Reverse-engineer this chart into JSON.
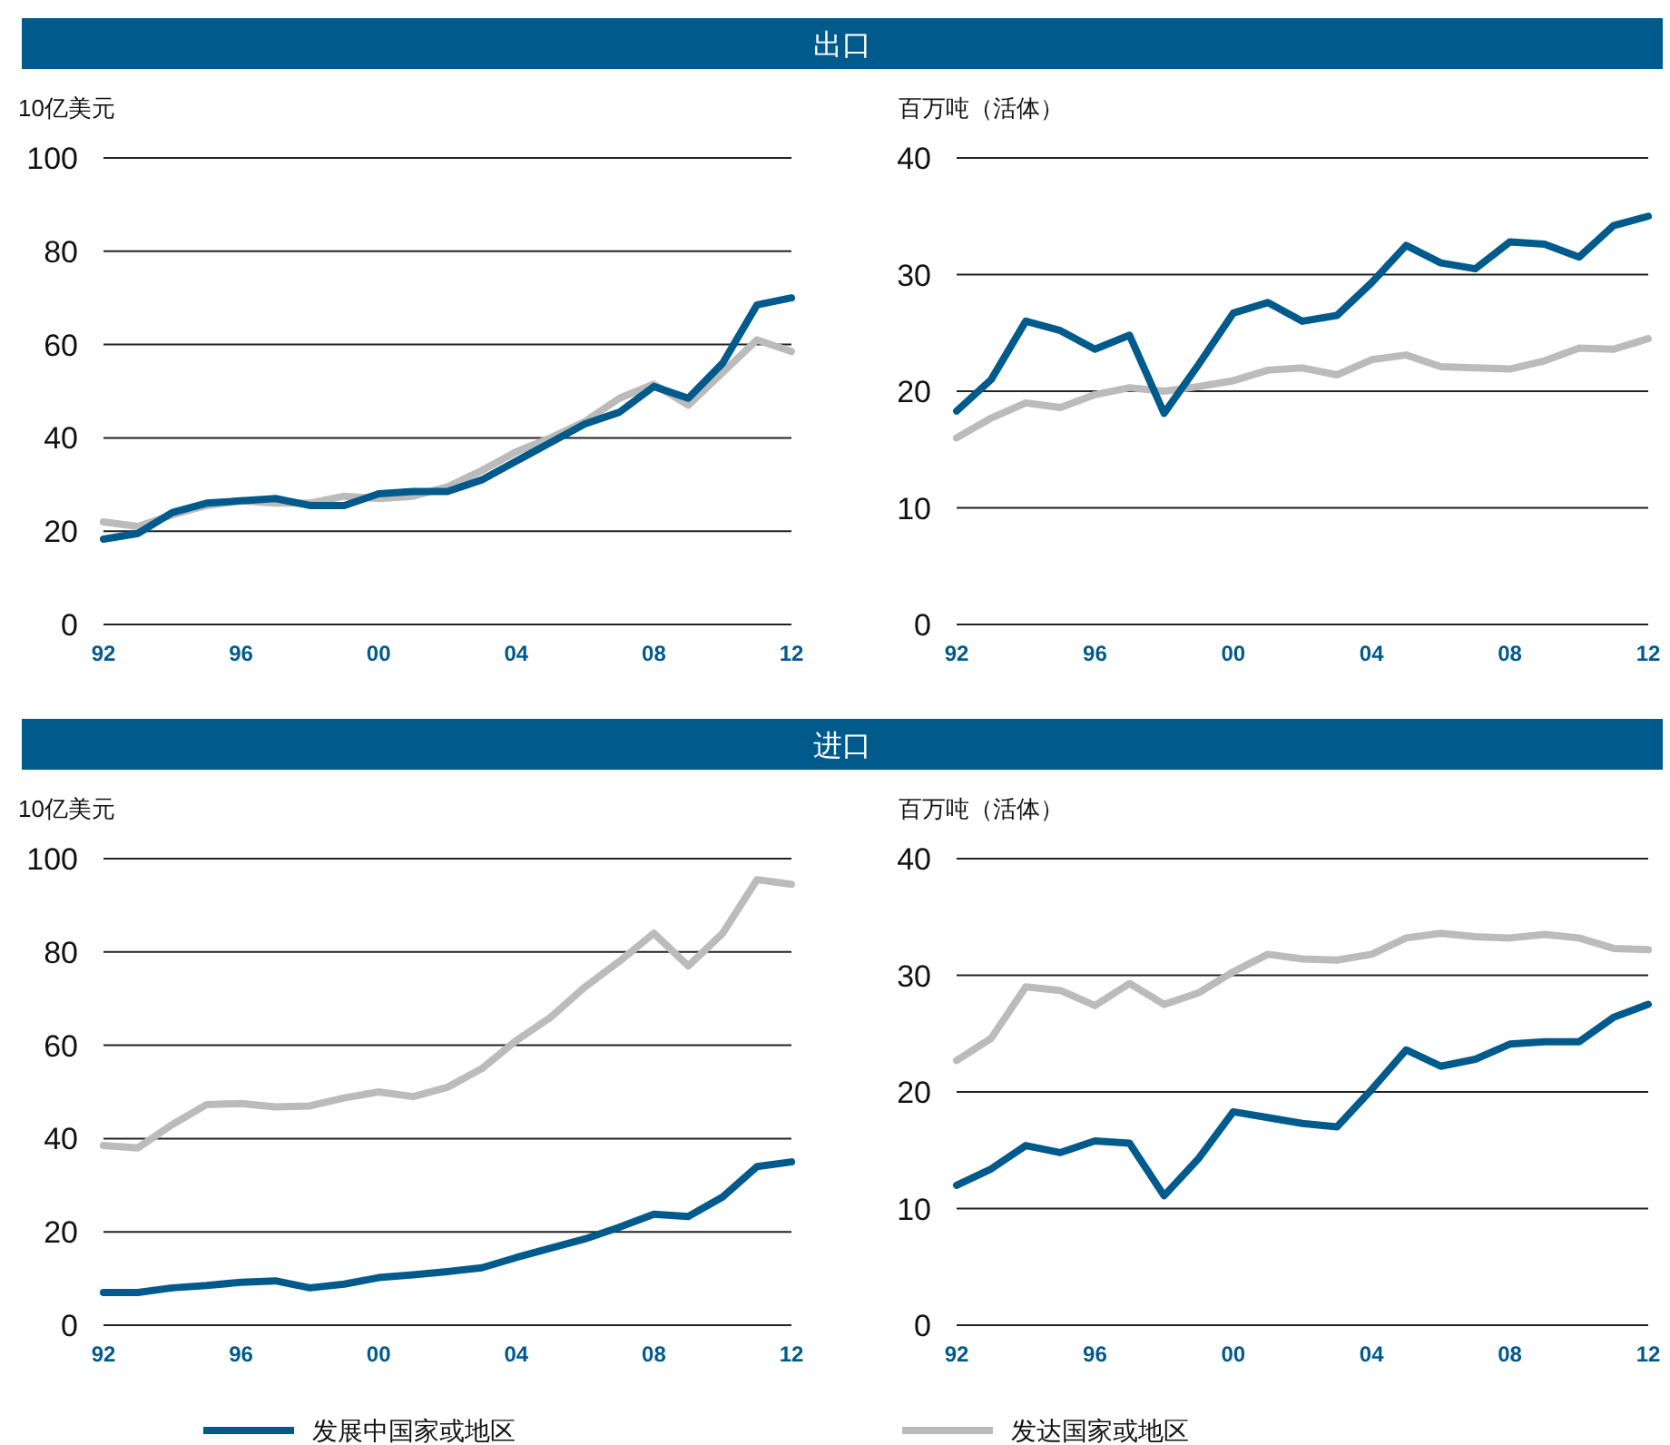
{
  "chart_data": [
    {
      "type": "line",
      "title": "出口",
      "ylabel": "10亿美元",
      "x": [
        1992,
        1993,
        1994,
        1995,
        1996,
        1997,
        1998,
        1999,
        2000,
        2001,
        2002,
        2003,
        2004,
        2005,
        2006,
        2007,
        2008,
        2009,
        2010,
        2011,
        2012
      ],
      "xlim": [
        1992,
        2012
      ],
      "xticks": [
        {
          "value": 1992,
          "label": "92"
        },
        {
          "value": 1996,
          "label": "96"
        },
        {
          "value": 2000,
          "label": "00"
        },
        {
          "value": 2004,
          "label": "04"
        },
        {
          "value": 2008,
          "label": "08"
        },
        {
          "value": 2012,
          "label": "12"
        }
      ],
      "ylim": [
        0,
        100
      ],
      "yticks": [
        0,
        20,
        40,
        60,
        80,
        100
      ],
      "grid": "y",
      "series": [
        {
          "color": "#bbbbbb",
          "values": [
            22,
            21,
            23.5,
            25.5,
            26.5,
            26,
            26,
            27.5,
            27,
            27.5,
            29.5,
            33,
            37,
            40,
            43.5,
            48.5,
            51.5,
            47,
            54,
            61,
            58.5
          ]
        },
        {
          "color": "#005a8c",
          "values": [
            18.3,
            19.5,
            24,
            26,
            26.5,
            27,
            25.5,
            25.5,
            28,
            28.5,
            28.5,
            31,
            35,
            39,
            43,
            45.5,
            51,
            48.5,
            56,
            68.5,
            70
          ]
        }
      ]
    },
    {
      "type": "line",
      "ylabel": "百万吨（活体）",
      "x": [
        1992,
        1993,
        1994,
        1995,
        1996,
        1997,
        1998,
        1999,
        2000,
        2001,
        2002,
        2003,
        2004,
        2005,
        2006,
        2007,
        2008,
        2009,
        2010,
        2011,
        2012
      ],
      "xlim": [
        1992,
        2012
      ],
      "xticks": [
        {
          "value": 1992,
          "label": "92"
        },
        {
          "value": 1996,
          "label": "96"
        },
        {
          "value": 2000,
          "label": "00"
        },
        {
          "value": 2004,
          "label": "04"
        },
        {
          "value": 2008,
          "label": "08"
        },
        {
          "value": 2012,
          "label": "12"
        }
      ],
      "ylim": [
        0,
        40
      ],
      "yticks": [
        0,
        10,
        20,
        30,
        40
      ],
      "grid": "y",
      "series": [
        {
          "color": "#bbbbbb",
          "values": [
            16,
            17.7,
            19,
            18.6,
            19.7,
            20.3,
            20,
            20.4,
            20.9,
            21.8,
            22,
            21.4,
            22.7,
            23.1,
            22.1,
            22,
            21.9,
            22.6,
            23.7,
            23.6,
            24.5
          ]
        },
        {
          "color": "#005a8c",
          "values": [
            18.3,
            21,
            26,
            25.2,
            23.6,
            24.8,
            18.1,
            22.3,
            26.7,
            27.6,
            26,
            26.5,
            29.3,
            32.5,
            31,
            30.5,
            32.8,
            32.6,
            31.5,
            34.2,
            35
          ]
        }
      ]
    },
    {
      "type": "line",
      "title": "进口",
      "ylabel": "10亿美元",
      "legend": "bottom",
      "x": [
        1992,
        1993,
        1994,
        1995,
        1996,
        1997,
        1998,
        1999,
        2000,
        2001,
        2002,
        2003,
        2004,
        2005,
        2006,
        2007,
        2008,
        2009,
        2010,
        2011,
        2012
      ],
      "xlim": [
        1992,
        2012
      ],
      "xticks": [
        {
          "value": 1992,
          "label": "92"
        },
        {
          "value": 1996,
          "label": "96"
        },
        {
          "value": 2000,
          "label": "00"
        },
        {
          "value": 2004,
          "label": "04"
        },
        {
          "value": 2008,
          "label": "08"
        },
        {
          "value": 2012,
          "label": "12"
        }
      ],
      "ylim": [
        0,
        100
      ],
      "yticks": [
        0,
        20,
        40,
        60,
        80,
        100
      ],
      "grid": "y",
      "series": [
        {
          "name": "发达国家或地区",
          "color": "#bbbbbb",
          "values": [
            38.5,
            38,
            43,
            47.3,
            47.5,
            46.8,
            47,
            48.7,
            50,
            49,
            51,
            55,
            61,
            66,
            72.5,
            78,
            84,
            77,
            84,
            95.5,
            94.5
          ]
        },
        {
          "name": "发展中国家或地区",
          "color": "#005a8c",
          "values": [
            7,
            7,
            8,
            8.5,
            9.2,
            9.5,
            8,
            8.8,
            10.2,
            10.8,
            11.5,
            12.3,
            14.5,
            16.5,
            18.5,
            21,
            23.8,
            23.3,
            27.5,
            34,
            35
          ]
        }
      ]
    },
    {
      "type": "line",
      "ylabel": "百万吨（活体）",
      "x": [
        1992,
        1993,
        1994,
        1995,
        1996,
        1997,
        1998,
        1999,
        2000,
        2001,
        2002,
        2003,
        2004,
        2005,
        2006,
        2007,
        2008,
        2009,
        2010,
        2011,
        2012
      ],
      "xlim": [
        1992,
        2012
      ],
      "xticks": [
        {
          "value": 1992,
          "label": "92"
        },
        {
          "value": 1996,
          "label": "96"
        },
        {
          "value": 2000,
          "label": "00"
        },
        {
          "value": 2004,
          "label": "04"
        },
        {
          "value": 2008,
          "label": "08"
        },
        {
          "value": 2012,
          "label": "12"
        }
      ],
      "ylim": [
        0,
        40
      ],
      "yticks": [
        0,
        10,
        20,
        30,
        40
      ],
      "grid": "y",
      "series": [
        {
          "color": "#bbbbbb",
          "values": [
            22.7,
            24.6,
            29,
            28.7,
            27.4,
            29.3,
            27.5,
            28.5,
            30.3,
            31.8,
            31.4,
            31.3,
            31.8,
            33.2,
            33.6,
            33.3,
            33.2,
            33.5,
            33.2,
            32.3,
            32.2
          ]
        },
        {
          "color": "#005a8c",
          "values": [
            12,
            13.4,
            15.4,
            14.8,
            15.8,
            15.6,
            11.1,
            14.3,
            18.3,
            17.8,
            17.3,
            17,
            20.2,
            23.6,
            22.2,
            22.8,
            24.1,
            24.3,
            24.3,
            26.4,
            27.5
          ]
        }
      ]
    }
  ]
}
